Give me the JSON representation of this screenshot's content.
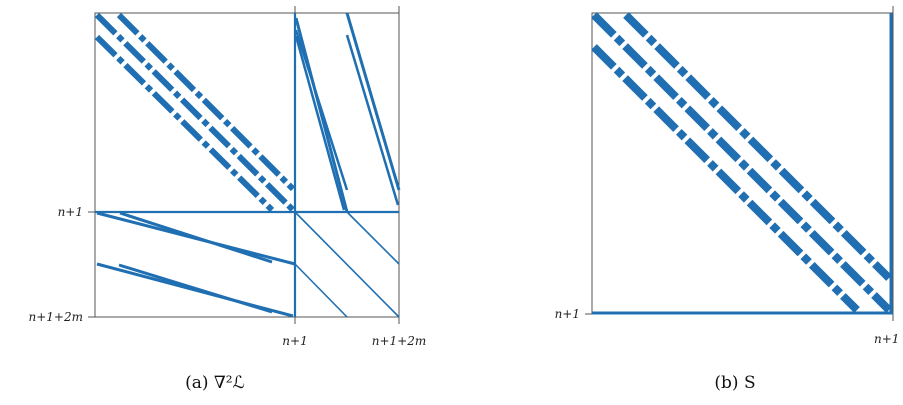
{
  "panel_a": {
    "caption": "(a) ∇²ℒ",
    "y_ticks": [
      "n+1",
      "n+1+2m"
    ],
    "x_ticks": [
      "n+1",
      "n+1+2m"
    ]
  },
  "panel_b": {
    "caption": "(b) S",
    "y_ticks": [
      "n+1"
    ],
    "x_ticks": [
      "n+1"
    ]
  },
  "colors": {
    "pattern": "#1f6fb2",
    "frame": "#555555"
  }
}
